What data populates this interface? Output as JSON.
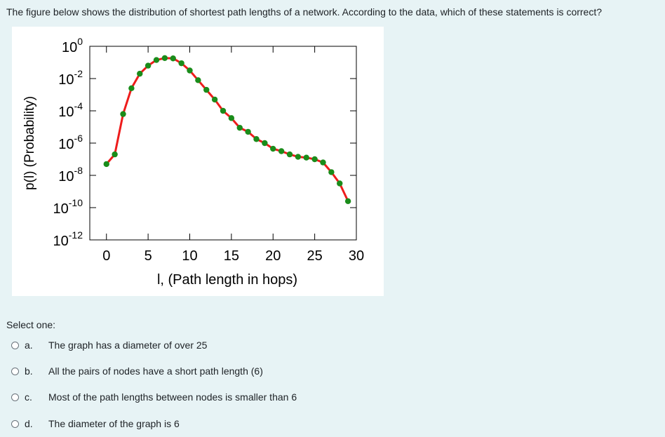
{
  "question": {
    "text": "The figure below shows the distribution of shortest path lengths of a network. According to the data, which of these statements is correct?"
  },
  "chart_data": {
    "type": "line",
    "xlabel": "l, (Path length in hops)",
    "ylabel": "p(l) (Probability)",
    "xlim": [
      -2,
      30
    ],
    "ylim_log10": [
      -12,
      0
    ],
    "y_scale": "log",
    "x_ticks": [
      0,
      5,
      10,
      15,
      20,
      25,
      30
    ],
    "y_ticks_exponents": [
      0,
      -2,
      -4,
      -6,
      -8,
      -10,
      -12
    ],
    "y_tick_base": "10",
    "grid": false,
    "line_color": "#ee1c1c",
    "marker_color": "#1a8c1a",
    "series": [
      {
        "x": [
          0,
          1,
          2,
          3,
          4,
          5,
          6,
          7,
          8,
          9,
          10,
          11,
          12,
          13,
          14,
          15,
          16,
          17,
          18,
          19,
          20,
          21,
          22,
          23,
          24,
          25,
          26,
          27,
          28,
          29
        ],
        "y_log10": [
          -7.3,
          -6.7,
          -4.2,
          -2.6,
          -1.7,
          -1.2,
          -0.85,
          -0.73,
          -0.75,
          -1.05,
          -1.5,
          -2.1,
          -2.7,
          -3.3,
          -4.0,
          -4.45,
          -5.05,
          -5.3,
          -5.75,
          -6.0,
          -6.35,
          -6.5,
          -6.7,
          -6.85,
          -6.9,
          -7.0,
          -7.2,
          -7.8,
          -8.5,
          -9.6
        ]
      }
    ]
  },
  "select_one": "Select one:",
  "options": [
    {
      "letter": "a.",
      "text": "The graph has a diameter of over 25"
    },
    {
      "letter": "b.",
      "text": "All the pairs of nodes have a short path length (6)"
    },
    {
      "letter": "c.",
      "text": "Most of the path lengths between nodes is smaller than 6"
    },
    {
      "letter": "d.",
      "text": "The diameter of the graph is 6"
    }
  ]
}
